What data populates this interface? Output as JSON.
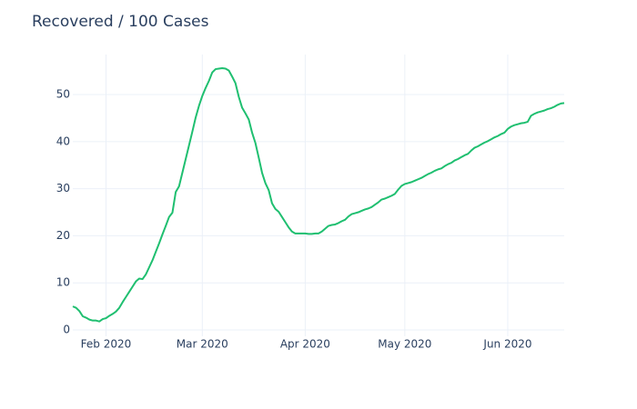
{
  "chart_data": {
    "type": "line",
    "title": "Recovered / 100 Cases",
    "categories": [
      null,
      null,
      null,
      null,
      null,
      null,
      null,
      null,
      null,
      null,
      "Feb 2020",
      null,
      null,
      null,
      null,
      null,
      null,
      null,
      null,
      null,
      null,
      null,
      null,
      null,
      null,
      null,
      null,
      null,
      null,
      null,
      null,
      null,
      null,
      null,
      null,
      null,
      null,
      null,
      null,
      "Mar 2020",
      null,
      null,
      null,
      null,
      null,
      null,
      null,
      null,
      null,
      null,
      null,
      null,
      null,
      null,
      null,
      null,
      null,
      null,
      null,
      null,
      null,
      null,
      null,
      null,
      null,
      null,
      null,
      null,
      null,
      null,
      "Apr 2020",
      null,
      null,
      null,
      null,
      null,
      null,
      null,
      null,
      null,
      null,
      null,
      null,
      null,
      null,
      null,
      null,
      null,
      null,
      null,
      null,
      null,
      null,
      null,
      null,
      null,
      null,
      null,
      null,
      null,
      "May 2020",
      null,
      null,
      null,
      null,
      null,
      null,
      null,
      null,
      null,
      null,
      null,
      null,
      null,
      null,
      null,
      null,
      null,
      null,
      null,
      null,
      null,
      null,
      null,
      null,
      null,
      null,
      null,
      null,
      null,
      null,
      "Jun 2020",
      null,
      null,
      null,
      null,
      null,
      null,
      null,
      null,
      null,
      null,
      null,
      null,
      null,
      null,
      null,
      null,
      null
    ],
    "values": [
      5,
      4.7,
      4.0,
      2.9,
      2.6,
      2.2,
      2.0,
      2.0,
      1.8,
      2.3,
      2.5,
      3.0,
      3.4,
      3.9,
      4.7,
      5.9,
      7.0,
      8.1,
      9.2,
      10.3,
      10.9,
      10.8,
      11.8,
      13.3,
      14.8,
      16.6,
      18.4,
      20.3,
      22.1,
      24.0,
      24.9,
      29.3,
      30.5,
      33.4,
      36.3,
      39.2,
      42.1,
      45.1,
      47.6,
      49.7,
      51.4,
      52.9,
      54.7,
      55.4,
      55.5,
      55.6,
      55.5,
      55.1,
      53.8,
      52.4,
      49.5,
      47.2,
      46.0,
      44.7,
      41.9,
      39.7,
      36.6,
      33.4,
      31.2,
      29.7,
      26.9,
      25.7,
      25.1,
      24.0,
      22.9,
      21.8,
      20.9,
      20.5,
      20.5,
      20.5,
      20.5,
      20.4,
      20.4,
      20.5,
      20.5,
      20.9,
      21.5,
      22.1,
      22.3,
      22.4,
      22.7,
      23.1,
      23.4,
      24.1,
      24.6,
      24.8,
      25.0,
      25.3,
      25.6,
      25.8,
      26.1,
      26.6,
      27.1,
      27.7,
      27.9,
      28.2,
      28.5,
      28.9,
      29.8,
      30.6,
      31.0,
      31.2,
      31.4,
      31.7,
      32.0,
      32.3,
      32.7,
      33.1,
      33.4,
      33.8,
      34.1,
      34.3,
      34.8,
      35.2,
      35.5,
      36.0,
      36.3,
      36.7,
      37.1,
      37.4,
      38.1,
      38.7,
      39.0,
      39.4,
      39.8,
      40.1,
      40.5,
      40.9,
      41.2,
      41.6,
      41.9,
      42.7,
      43.2,
      43.5,
      43.7,
      43.9,
      44.0,
      44.2,
      45.5,
      45.9,
      46.2,
      46.4,
      46.6,
      46.9,
      47.1,
      47.4,
      47.8,
      48.1,
      48.2
    ],
    "color": "#1fbf70",
    "ylim": [
      -1.35,
      58.5
    ],
    "yticks": [
      0,
      10,
      20,
      30,
      40,
      50
    ],
    "grid": true
  }
}
